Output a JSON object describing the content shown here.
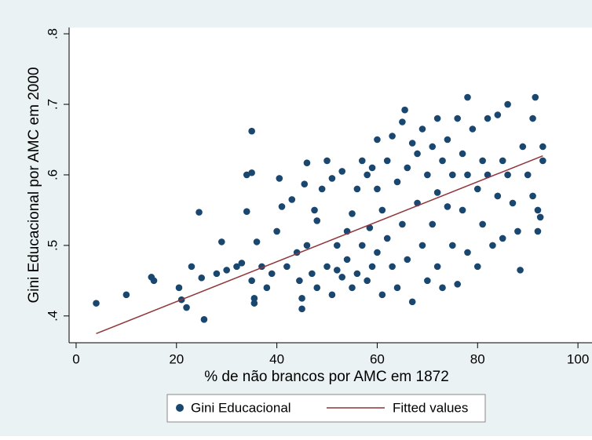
{
  "chart_data": {
    "type": "scatter",
    "xlabel": "% de não brancos por AMC em 1872",
    "ylabel": "Gini Educacional por AMC em 2000",
    "xlim": [
      -1.4,
      102.8
    ],
    "ylim": [
      0.362,
      0.809
    ],
    "xticks": [
      0,
      20,
      40,
      60,
      80,
      100
    ],
    "yticks": [
      {
        "value": 0.4,
        "label": ".4"
      },
      {
        "value": 0.5,
        "label": ".5"
      },
      {
        "value": 0.6,
        "label": ".6"
      },
      {
        "value": 0.7,
        "label": ".7"
      },
      {
        "value": 0.8,
        "label": ".8"
      }
    ],
    "grid": false,
    "series": [
      {
        "name": "Gini Educacional",
        "color": "#1a476f",
        "mode": "markers",
        "x": [
          4,
          10,
          15,
          15.5,
          20.5,
          21,
          22,
          23,
          24.5,
          25,
          25.5,
          28,
          29,
          30,
          32,
          33,
          34,
          34,
          35,
          35,
          35,
          35.5,
          35.5,
          36,
          37,
          38,
          39,
          40,
          40.5,
          41,
          42,
          43,
          44,
          44.5,
          45,
          45,
          45.5,
          46,
          46,
          47,
          47.5,
          48,
          48,
          49,
          50,
          50,
          51,
          51,
          52,
          52,
          53,
          53,
          54,
          54,
          55,
          55,
          56,
          56,
          57,
          57,
          58,
          58,
          58.5,
          59,
          59,
          60,
          60,
          60,
          61,
          61,
          62,
          62,
          63,
          63,
          64,
          64,
          65,
          65,
          65.5,
          66,
          66,
          67,
          67,
          68,
          68,
          69,
          69,
          70,
          70,
          71,
          71,
          72,
          72,
          72,
          73,
          73,
          74,
          74,
          75,
          75,
          76,
          76,
          77,
          77,
          78,
          78,
          78,
          79,
          80,
          80,
          81,
          81,
          82,
          82,
          83,
          84,
          84,
          85,
          85,
          86,
          86,
          87,
          88,
          88.5,
          89,
          90,
          91,
          91.5,
          91,
          92,
          92,
          93,
          93,
          92.5
        ],
        "values": [
          0.418,
          0.43,
          0.455,
          0.45,
          0.44,
          0.423,
          0.412,
          0.47,
          0.547,
          0.454,
          0.395,
          0.46,
          0.505,
          0.465,
          0.47,
          0.475,
          0.6,
          0.548,
          0.662,
          0.603,
          0.45,
          0.425,
          0.418,
          0.505,
          0.47,
          0.44,
          0.46,
          0.52,
          0.595,
          0.555,
          0.47,
          0.565,
          0.49,
          0.45,
          0.41,
          0.425,
          0.587,
          0.617,
          0.5,
          0.46,
          0.55,
          0.535,
          0.44,
          0.58,
          0.47,
          0.62,
          0.595,
          0.43,
          0.5,
          0.465,
          0.605,
          0.455,
          0.48,
          0.52,
          0.545,
          0.44,
          0.58,
          0.46,
          0.62,
          0.5,
          0.45,
          0.6,
          0.525,
          0.47,
          0.61,
          0.49,
          0.65,
          0.58,
          0.43,
          0.55,
          0.62,
          0.51,
          0.47,
          0.655,
          0.59,
          0.44,
          0.675,
          0.53,
          0.692,
          0.61,
          0.48,
          0.645,
          0.42,
          0.56,
          0.63,
          0.5,
          0.665,
          0.6,
          0.45,
          0.64,
          0.53,
          0.68,
          0.575,
          0.47,
          0.62,
          0.44,
          0.65,
          0.555,
          0.6,
          0.5,
          0.68,
          0.445,
          0.63,
          0.55,
          0.71,
          0.6,
          0.49,
          0.665,
          0.58,
          0.47,
          0.62,
          0.53,
          0.68,
          0.6,
          0.5,
          0.57,
          0.685,
          0.62,
          0.51,
          0.7,
          0.6,
          0.56,
          0.52,
          0.465,
          0.64,
          0.6,
          0.68,
          0.71,
          0.57,
          0.55,
          0.52,
          0.64,
          0.62,
          0.54
        ]
      },
      {
        "name": "Fitted values",
        "color": "#90353b",
        "mode": "line",
        "x": [
          4,
          93
        ],
        "values": [
          0.375,
          0.627
        ]
      }
    ]
  }
}
